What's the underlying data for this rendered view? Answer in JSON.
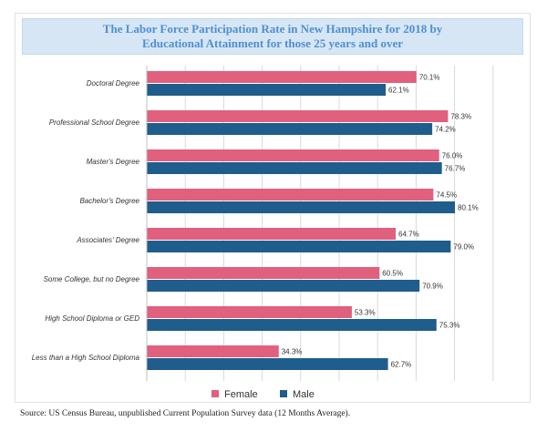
{
  "title_lines": [
    "The Labor Force Participation Rate in New Hampshire for 2018 by",
    "Educational Attainment for those 25 years and over"
  ],
  "source": "Source: US Census Bureau, unpublished Current Population Survey data (12 Months Average).",
  "colors": {
    "female": "#e0607e",
    "male": "#1f5d8c",
    "title_bg": "#d6e6f5",
    "title_text": "#4f8fd0",
    "grid": "#d9d9d9"
  },
  "chart_data": {
    "type": "bar",
    "orientation": "horizontal",
    "title": "The Labor Force Participation Rate in New Hampshire for 2018 by Educational Attainment for those 25 years and over",
    "categories": [
      "Doctoral Degree",
      "Professional School Degree",
      "Master's Degree",
      "Bachelor's Degree",
      "Associates' Degree",
      "Some College, but no Degree",
      "High School Diploma or GED",
      "Less than a High School Diploma"
    ],
    "series": [
      {
        "name": "Female",
        "values": [
          70.1,
          78.3,
          76.0,
          74.5,
          64.7,
          60.5,
          53.3,
          34.3
        ],
        "labels": [
          "70.1%",
          "78.3%",
          "76.0%",
          "74.5%",
          "64.7%",
          "60.5%",
          "53.3%",
          "34.3%"
        ]
      },
      {
        "name": "Male",
        "values": [
          62.1,
          74.2,
          76.7,
          80.1,
          79.0,
          70.9,
          75.3,
          62.7
        ],
        "labels": [
          "62.1%",
          "74.2%",
          "76.7%",
          "80.1%",
          "79.0%",
          "70.9%",
          "75.3%",
          "62.7%"
        ]
      }
    ],
    "xlim": [
      0,
      90
    ],
    "grid": true,
    "legend": "bottom"
  }
}
